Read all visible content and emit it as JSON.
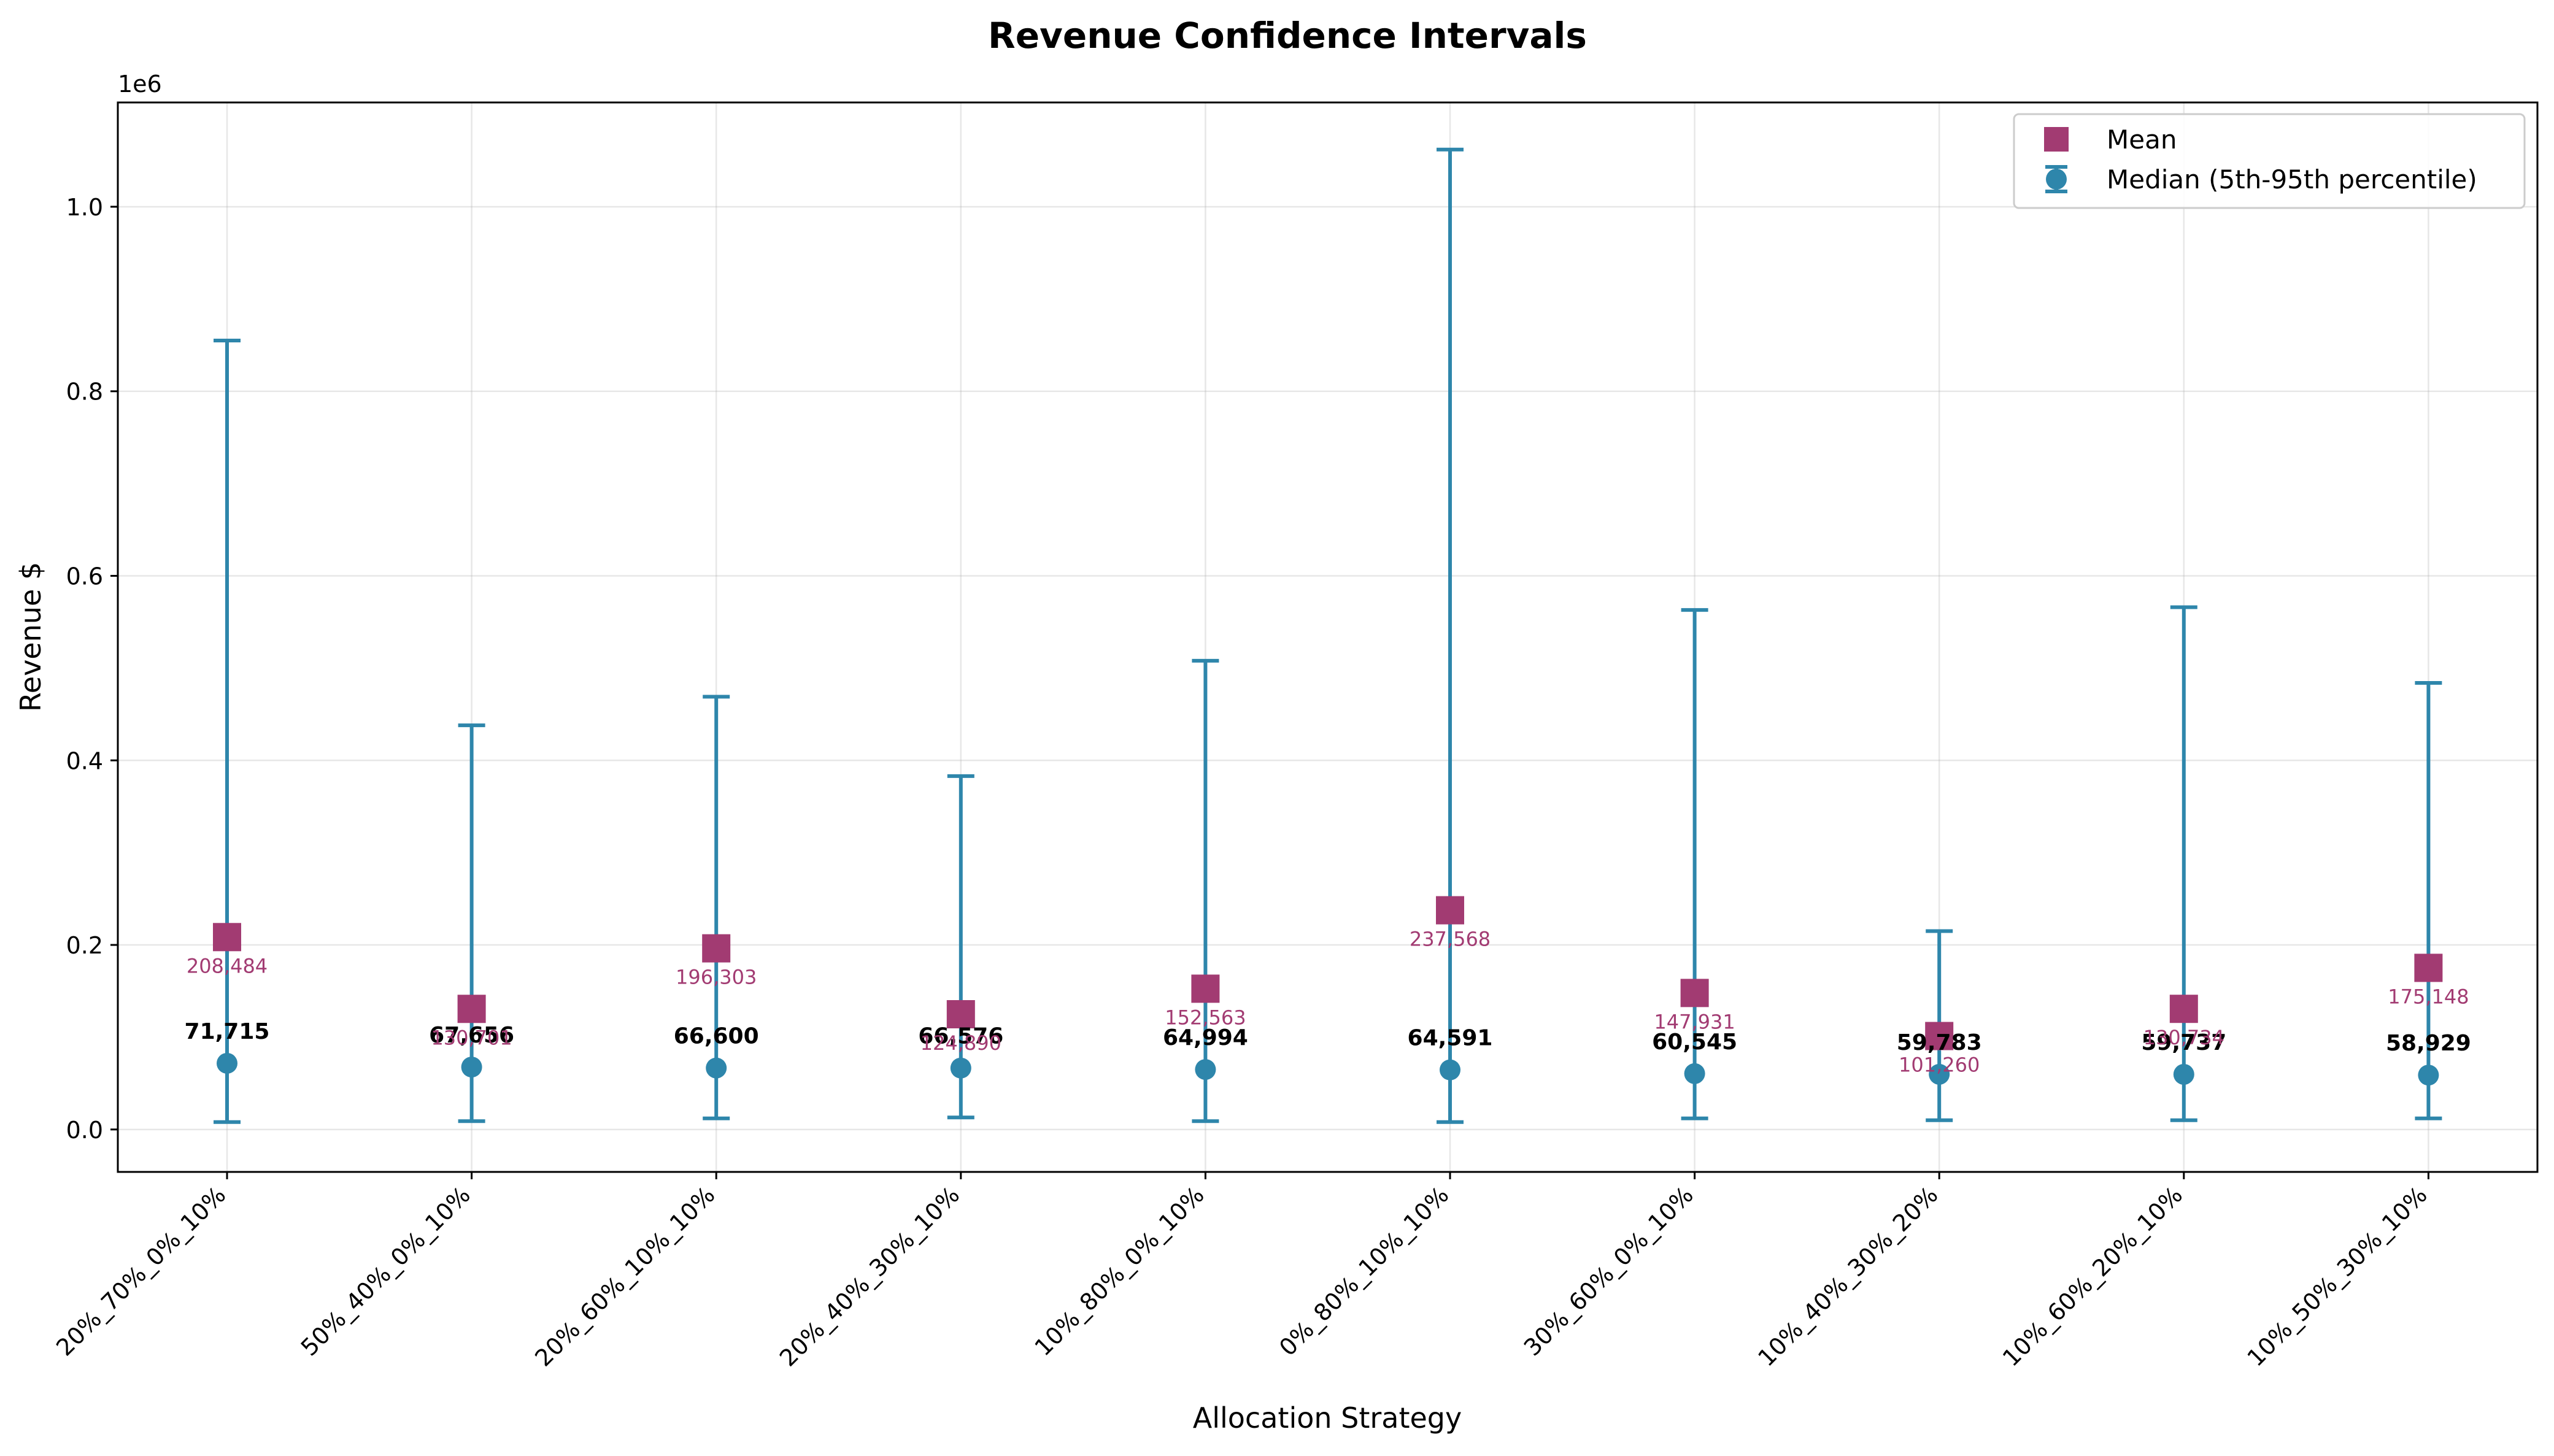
{
  "chart_data": {
    "type": "scatter",
    "title": "Revenue Confidence Intervals",
    "xlabel": "Allocation Strategy",
    "ylabel": "Revenue $",
    "y_offset_label": "1e6",
    "ylim": [
      -46000,
      1113000
    ],
    "y_ticks": [
      0,
      200000,
      400000,
      600000,
      800000,
      1000000
    ],
    "y_tick_labels": [
      "0.0",
      "0.2",
      "0.4",
      "0.6",
      "0.8",
      "1.0"
    ],
    "grid": true,
    "legend_position": "top-right",
    "categories": [
      "20%_70%_0%_10%",
      "50%_40%_0%_10%",
      "20%_60%_10%_10%",
      "20%_40%_30%_10%",
      "10%_80%_0%_10%",
      "0%_80%_10%_10%",
      "30%_60%_0%_10%",
      "10%_40%_30%_20%",
      "10%_60%_20%_10%",
      "10%_50%_30%_10%"
    ],
    "series": [
      {
        "name": "Mean",
        "marker": "square",
        "color": "#a23b72",
        "values": [
          208484,
          130701,
          196303,
          124890,
          152563,
          237568,
          147931,
          101260,
          130734,
          175148
        ],
        "labels": [
          "208,484",
          "130,701",
          "196,303",
          "124,890",
          "152,563",
          "237,568",
          "147,931",
          "101,260",
          "130,734",
          "175,148"
        ]
      },
      {
        "name": "Median (5th-95th percentile)",
        "marker": "circle",
        "color": "#2e86ab",
        "values": [
          71715,
          67656,
          66600,
          66576,
          64994,
          64591,
          60545,
          59783,
          59737,
          58929
        ],
        "labels": [
          "71,715",
          "67,656",
          "66,600",
          "66,576",
          "64,994",
          "64,591",
          "60,545",
          "59,783",
          "59,737",
          "58,929"
        ],
        "p5": [
          8000,
          9000,
          12000,
          13000,
          9000,
          8000,
          12000,
          10000,
          10000,
          12000
        ],
        "p95": [
          855000,
          438000,
          469000,
          383000,
          508000,
          1062000,
          563000,
          215000,
          566000,
          484000
        ]
      }
    ]
  }
}
